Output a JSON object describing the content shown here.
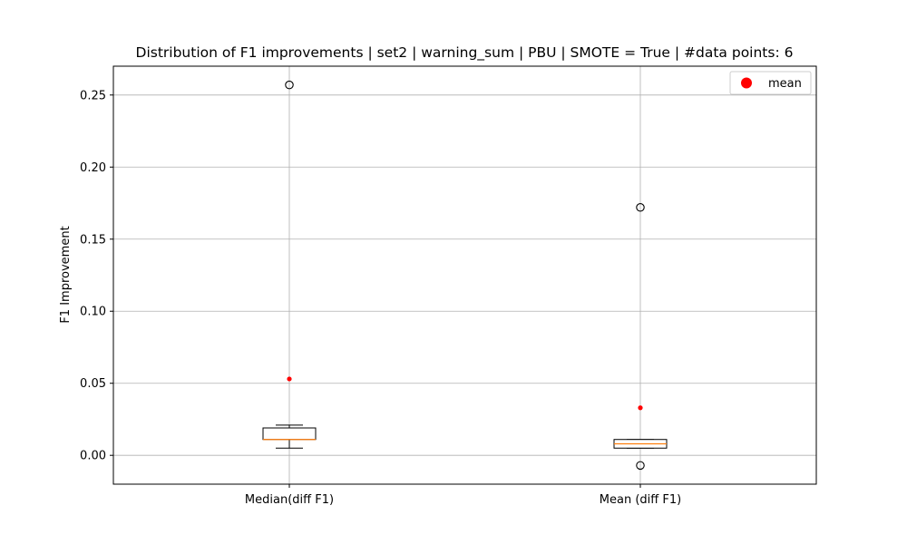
{
  "chart_data": {
    "type": "boxplot",
    "title": "Distribution of F1 improvements | set2 | warning_sum | PBU | SMOTE = True | #data points: 6",
    "xlabel": "",
    "ylabel": "F1 Improvement",
    "ylim": [
      -0.02,
      0.27
    ],
    "yticks": [
      "0.00",
      "0.05",
      "0.10",
      "0.15",
      "0.20",
      "0.25"
    ],
    "ytick_values": [
      0.0,
      0.05,
      0.1,
      0.15,
      0.2,
      0.25
    ],
    "grid": true,
    "categories": [
      "Median(diff F1)",
      "Mean (diff F1)"
    ],
    "boxes": [
      {
        "whisker_low": 0.005,
        "q1": 0.011,
        "median": 0.011,
        "q3": 0.019,
        "whisker_high": 0.021,
        "fliers": [
          0.257
        ],
        "mean": 0.053
      },
      {
        "whisker_low": 0.005,
        "q1": 0.005,
        "median": 0.008,
        "q3": 0.011,
        "whisker_high": 0.011,
        "fliers": [
          0.172,
          -0.007
        ],
        "mean": 0.033
      }
    ],
    "legend": {
      "position": "top-right",
      "entries": [
        {
          "label": "mean",
          "color": "#ff0000"
        }
      ]
    },
    "colors": {
      "box": "#000000",
      "median": "#ff7f0e",
      "mean": "#ff0000",
      "grid": "#b0b0b0"
    }
  }
}
